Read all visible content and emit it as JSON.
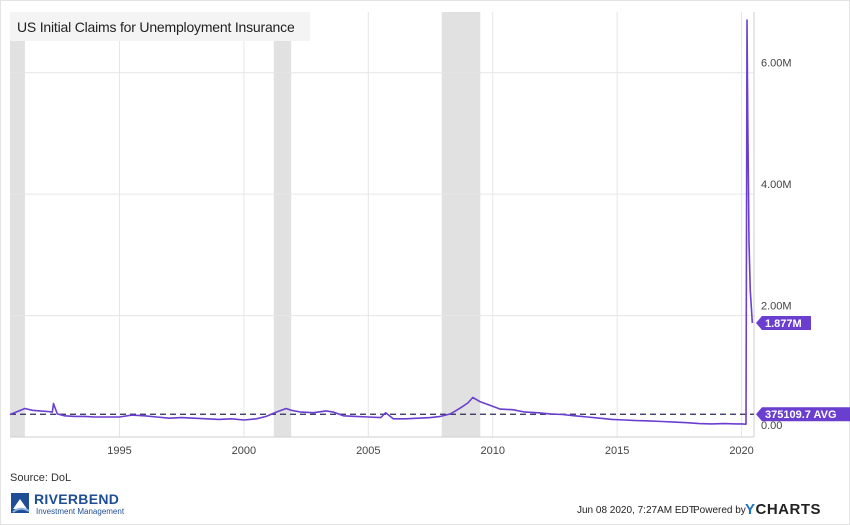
{
  "title": "US Initial Claims for Unemployment Insurance",
  "source": "Source: DoL",
  "logo": {
    "name": "RIVERBEND",
    "subtitle": "Investment Management"
  },
  "footer": {
    "date": "Jun 08 2020, 7:27AM EDT.",
    "powered_by": "Powered by",
    "brand_y": "Y",
    "brand_rest": "CHARTS"
  },
  "colors": {
    "series": "#6a3fd0",
    "recession": "#e1e1e1",
    "grid": "#e6e6e6",
    "avg_line": "#2a2a5a"
  },
  "chart_data": {
    "type": "line",
    "title": "US Initial Claims for Unemployment Insurance",
    "xlabel": "",
    "ylabel": "",
    "x_ticks": [
      "1995",
      "2000",
      "2005",
      "2010",
      "2015",
      "2020"
    ],
    "y_ticks": [
      "0.00",
      "2.00M",
      "4.00M",
      "6.00M"
    ],
    "ylim": [
      0,
      7000000
    ],
    "xlim": [
      1990.6,
      2020.5
    ],
    "grid": true,
    "recession_shading": [
      [
        1990.6,
        1991.2
      ],
      [
        2001.2,
        2001.9
      ],
      [
        2007.95,
        2009.5
      ]
    ],
    "series": [
      {
        "values_desc": "weekly initial claims",
        "x": [
          1990.6,
          1990.9,
          1991.2,
          1991.5,
          1991.8,
          1992.1,
          1992.3,
          1992.35,
          1992.5,
          1992.8,
          1993.2,
          1993.6,
          1994.0,
          1994.5,
          1995.0,
          1995.5,
          1996.0,
          1996.5,
          1997.0,
          1997.5,
          1998.0,
          1998.5,
          1999.0,
          1999.5,
          2000.0,
          2000.5,
          2000.9,
          2001.3,
          2001.7,
          2001.9,
          2002.3,
          2002.8,
          2003.3,
          2003.6,
          2004.0,
          2004.5,
          2005.0,
          2005.5,
          2005.7,
          2006.0,
          2006.5,
          2007.0,
          2007.5,
          2007.9,
          2008.3,
          2008.7,
          2009.0,
          2009.2,
          2009.5,
          2009.9,
          2010.3,
          2010.8,
          2011.3,
          2011.8,
          2012.3,
          2012.8,
          2013.3,
          2013.8,
          2014.3,
          2014.8,
          2015.3,
          2015.8,
          2016.3,
          2016.8,
          2017.3,
          2017.8,
          2018.3,
          2018.8,
          2019.3,
          2019.8,
          2020.0,
          2020.18,
          2020.2,
          2020.22,
          2020.25,
          2020.27,
          2020.3,
          2020.35,
          2020.4,
          2020.43
        ],
        "y": [
          370000,
          420000,
          470000,
          440000,
          430000,
          420000,
          410000,
          550000,
          380000,
          350000,
          340000,
          340000,
          330000,
          330000,
          330000,
          360000,
          350000,
          330000,
          310000,
          320000,
          310000,
          300000,
          290000,
          300000,
          280000,
          300000,
          340000,
          410000,
          470000,
          440000,
          410000,
          400000,
          430000,
          410000,
          350000,
          340000,
          330000,
          320000,
          400000,
          300000,
          300000,
          310000,
          320000,
          340000,
          380000,
          480000,
          560000,
          650000,
          580000,
          520000,
          460000,
          450000,
          410000,
          400000,
          380000,
          370000,
          350000,
          330000,
          310000,
          290000,
          280000,
          270000,
          265000,
          255000,
          245000,
          235000,
          220000,
          215000,
          220000,
          215000,
          215000,
          211000,
          3300000,
          6867000,
          5200000,
          4400000,
          3200000,
          2400000,
          2100000,
          1877000
        ]
      }
    ],
    "average_line": {
      "value": 375109.7,
      "label": "375109.7 AVG"
    },
    "last_value_label": "1.877M"
  }
}
